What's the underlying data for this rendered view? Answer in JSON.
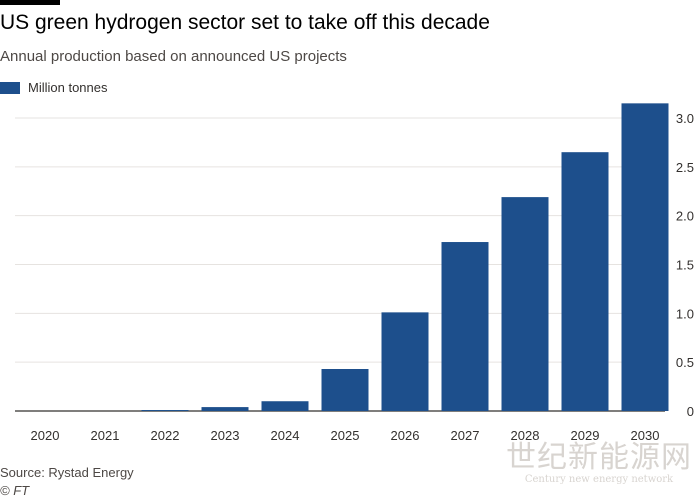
{
  "title": "US green hydrogen sector set to take off this decade",
  "subtitle": "Annual production based on announced US projects",
  "source": "Source: Rystad Energy",
  "credit": "© FT",
  "watermark": {
    "chinese": "世纪新能源网",
    "english": "Century new energy network"
  },
  "colors": {
    "bar": "#1d4f8c",
    "grid": "#e6e3e0",
    "axis": "#33302e",
    "text": "#33302e"
  },
  "chart_data": {
    "type": "bar",
    "title": "US green hydrogen sector set to take off this decade",
    "subtitle": "Annual production based on announced US projects",
    "categories": [
      "2020",
      "2021",
      "2022",
      "2023",
      "2024",
      "2025",
      "2026",
      "2027",
      "2028",
      "2029",
      "2030"
    ],
    "series": [
      {
        "name": "Million tonnes",
        "values": [
          0.0,
          0.0,
          0.01,
          0.04,
          0.1,
          0.43,
          1.01,
          1.73,
          2.19,
          2.65,
          3.15
        ]
      }
    ],
    "yticks": [
      "0",
      "0.5",
      "1.0",
      "1.5",
      "2.0",
      "2.5",
      "3.0"
    ],
    "ylim": [
      0,
      3.2
    ],
    "grid": true,
    "y_axis_side": "right",
    "legend": "top-left"
  }
}
